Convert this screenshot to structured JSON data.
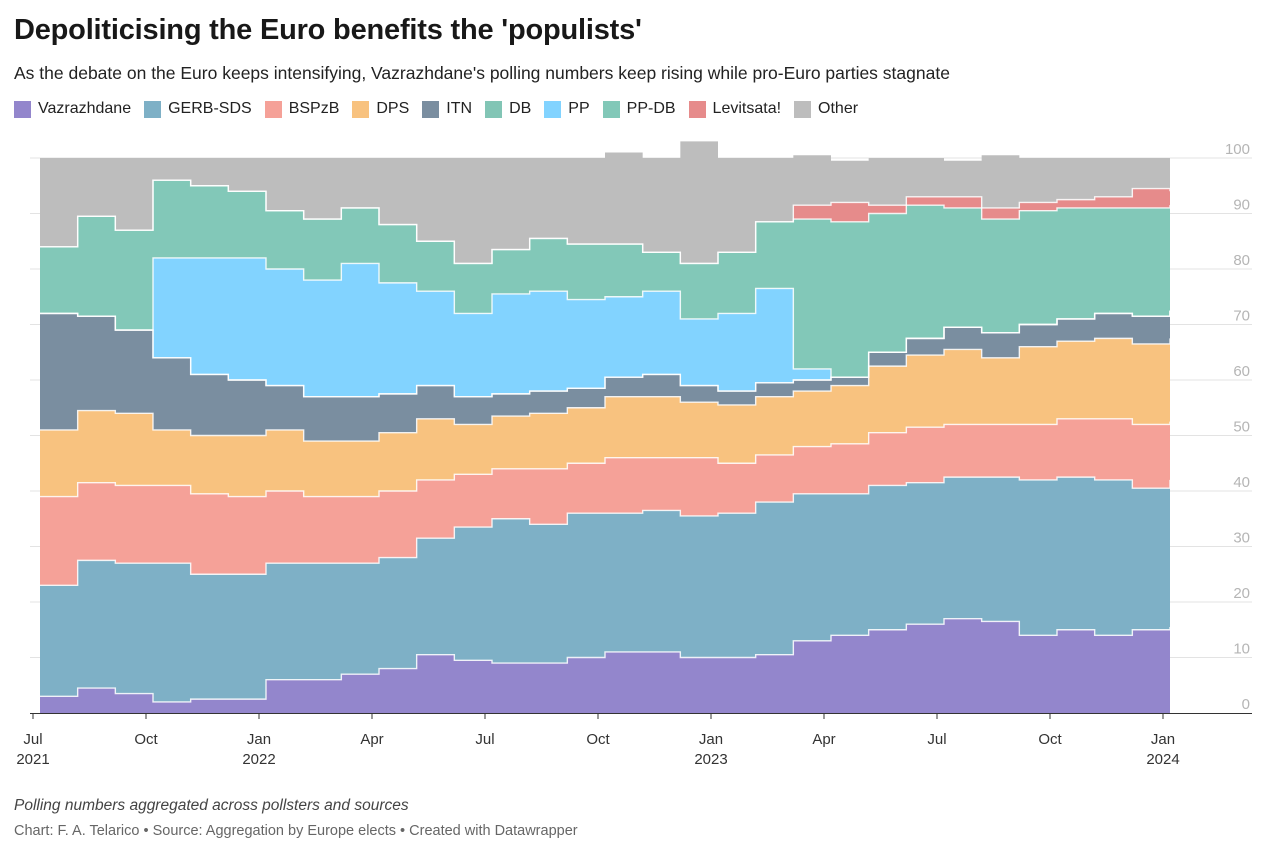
{
  "header": {
    "title": "Depoliticising the Euro benefits the 'populists'",
    "subtitle": "As the debate on the Euro keeps intensifying, Vazrazhdane's polling numbers keep rising while pro-Euro parties stagnate"
  },
  "footer": {
    "notes": "Polling numbers aggregated across pollsters and sources",
    "credit": "Chart: F. A. Telarico • Source: Aggregation by Europe elects • Created with Datawrapper"
  },
  "chart_data": {
    "type": "area",
    "stacked": true,
    "x_unit": "month",
    "x_domain": [
      "2021-07",
      "2024-07"
    ],
    "ylim": [
      0,
      100
    ],
    "y_ticks": [
      0,
      10,
      20,
      30,
      40,
      50,
      60,
      70,
      80,
      90,
      100
    ],
    "y_axis_side": "right",
    "grid": true,
    "legend_position": "top",
    "x_tick_labels": [
      {
        "date": "2021-07",
        "lines": [
          "Jul",
          "2021"
        ]
      },
      {
        "date": "2021-10",
        "lines": [
          "Oct"
        ]
      },
      {
        "date": "2022-01",
        "lines": [
          "Jan",
          "2022"
        ]
      },
      {
        "date": "2022-04",
        "lines": [
          "Apr"
        ]
      },
      {
        "date": "2022-07",
        "lines": [
          "Jul"
        ]
      },
      {
        "date": "2022-10",
        "lines": [
          "Oct"
        ]
      },
      {
        "date": "2023-01",
        "lines": [
          "Jan",
          "2023"
        ]
      },
      {
        "date": "2023-04",
        "lines": [
          "Apr"
        ]
      },
      {
        "date": "2023-07",
        "lines": [
          "Jul"
        ]
      },
      {
        "date": "2023-10",
        "lines": [
          "Oct"
        ]
      },
      {
        "date": "2024-01",
        "lines": [
          "Jan",
          "2024"
        ]
      }
    ],
    "x": [
      "2021-07",
      "2021-08",
      "2021-09",
      "2021-10",
      "2021-11",
      "2021-12",
      "2022-01",
      "2022-02",
      "2022-03",
      "2022-04",
      "2022-05",
      "2022-06",
      "2022-07",
      "2022-08",
      "2022-09",
      "2022-10",
      "2022-11",
      "2022-12",
      "2023-01",
      "2023-02",
      "2023-03",
      "2023-04",
      "2023-05",
      "2023-06",
      "2023-07",
      "2023-08",
      "2023-09",
      "2023-10",
      "2023-11",
      "2023-12",
      "2024-01"
    ],
    "series": [
      {
        "name": "Vazrazhdane",
        "color": "#9386cc",
        "values": [
          3,
          4.5,
          3.5,
          2,
          2.5,
          2.5,
          6,
          6,
          7,
          8,
          10.5,
          9.5,
          9,
          9,
          10,
          11,
          11,
          10,
          10,
          10.5,
          13,
          14,
          15,
          16,
          17,
          16.5,
          14,
          15,
          14,
          15,
          15.5
        ]
      },
      {
        "name": "GERB-SDS",
        "color": "#7eb0c6",
        "values": [
          20,
          23,
          23.5,
          25,
          22.5,
          22.5,
          21,
          21,
          20,
          20,
          21,
          24,
          26,
          25,
          26,
          25,
          25.5,
          25.5,
          26,
          27.5,
          26.5,
          25.5,
          26,
          25.5,
          25.5,
          26,
          28,
          27.5,
          28,
          25.5,
          26.5
        ]
      },
      {
        "name": "BSPzB",
        "color": "#f5a198",
        "values": [
          16,
          14,
          14,
          14,
          14.5,
          14,
          13,
          12,
          12,
          12,
          10.5,
          9.5,
          9,
          10,
          9,
          10,
          9.5,
          10.5,
          9,
          8.5,
          8.5,
          9,
          9.5,
          10,
          9.5,
          9.5,
          10,
          10.5,
          11,
          11.5,
          10.5
        ]
      },
      {
        "name": "DPS",
        "color": "#f8c27f",
        "values": [
          12,
          13,
          13,
          10,
          10.5,
          11,
          11,
          10,
          10,
          10.5,
          11,
          9,
          9.5,
          10,
          10,
          11,
          11,
          10,
          10.5,
          10.5,
          10,
          10.5,
          12,
          13,
          13.5,
          12,
          14,
          14,
          14.5,
          14.5,
          15
        ]
      },
      {
        "name": "ITN",
        "color": "#7a8ea0",
        "values": [
          21,
          17,
          15,
          13,
          11,
          10,
          8,
          8,
          8,
          7,
          6,
          5,
          4,
          4,
          3.5,
          3.5,
          4,
          3,
          2.5,
          2.5,
          2,
          1.5,
          2.5,
          3,
          4,
          4.5,
          4,
          4,
          4.5,
          5,
          5
        ]
      },
      {
        "name": "DB",
        "color": "#82c5b5",
        "values": [
          0,
          0,
          0,
          0,
          0,
          0,
          0,
          0,
          0,
          0,
          0,
          0,
          0,
          0,
          0,
          0,
          0,
          0,
          0,
          0,
          0,
          0,
          0,
          0,
          0,
          0,
          0,
          0,
          0,
          0,
          0
        ]
      },
      {
        "name": "PP",
        "color": "#82d3ff",
        "values": [
          0,
          0,
          0,
          18,
          21,
          22,
          21,
          21,
          24,
          20,
          17,
          15,
          18,
          18,
          16,
          14.5,
          15,
          12,
          14,
          17,
          2,
          0,
          0,
          0,
          0,
          0,
          0,
          0,
          0,
          0,
          0
        ]
      },
      {
        "name": "PP-DB",
        "color": "#82c8b8",
        "values": [
          12,
          18,
          18,
          14,
          13,
          12,
          10.5,
          11,
          10,
          10.5,
          9,
          9,
          8,
          9.5,
          10,
          9.5,
          7,
          10,
          11,
          12,
          27,
          28,
          25,
          24,
          21.5,
          20.5,
          20.5,
          20,
          19,
          19.5,
          19
        ]
      },
      {
        "name": "Levitsata!",
        "color": "#e68b8b",
        "values": [
          0,
          0,
          0,
          0,
          0,
          0,
          0,
          0,
          0,
          0,
          0,
          0,
          0,
          0,
          0,
          0,
          0,
          0,
          0,
          0,
          2.5,
          3.5,
          1.5,
          1.5,
          2,
          2,
          1.5,
          1.5,
          2,
          3.5,
          2.5
        ]
      },
      {
        "name": "Other",
        "color": "#bdbdbd",
        "values": [
          16,
          10.5,
          13,
          4,
          5,
          6,
          9.5,
          11,
          9,
          12,
          15,
          19,
          16.5,
          14.5,
          15.5,
          16.5,
          17,
          22,
          17,
          11.5,
          9,
          7.5,
          8.5,
          7,
          6.5,
          9.5,
          8,
          7.5,
          7,
          5.5,
          6.5
        ]
      }
    ]
  }
}
